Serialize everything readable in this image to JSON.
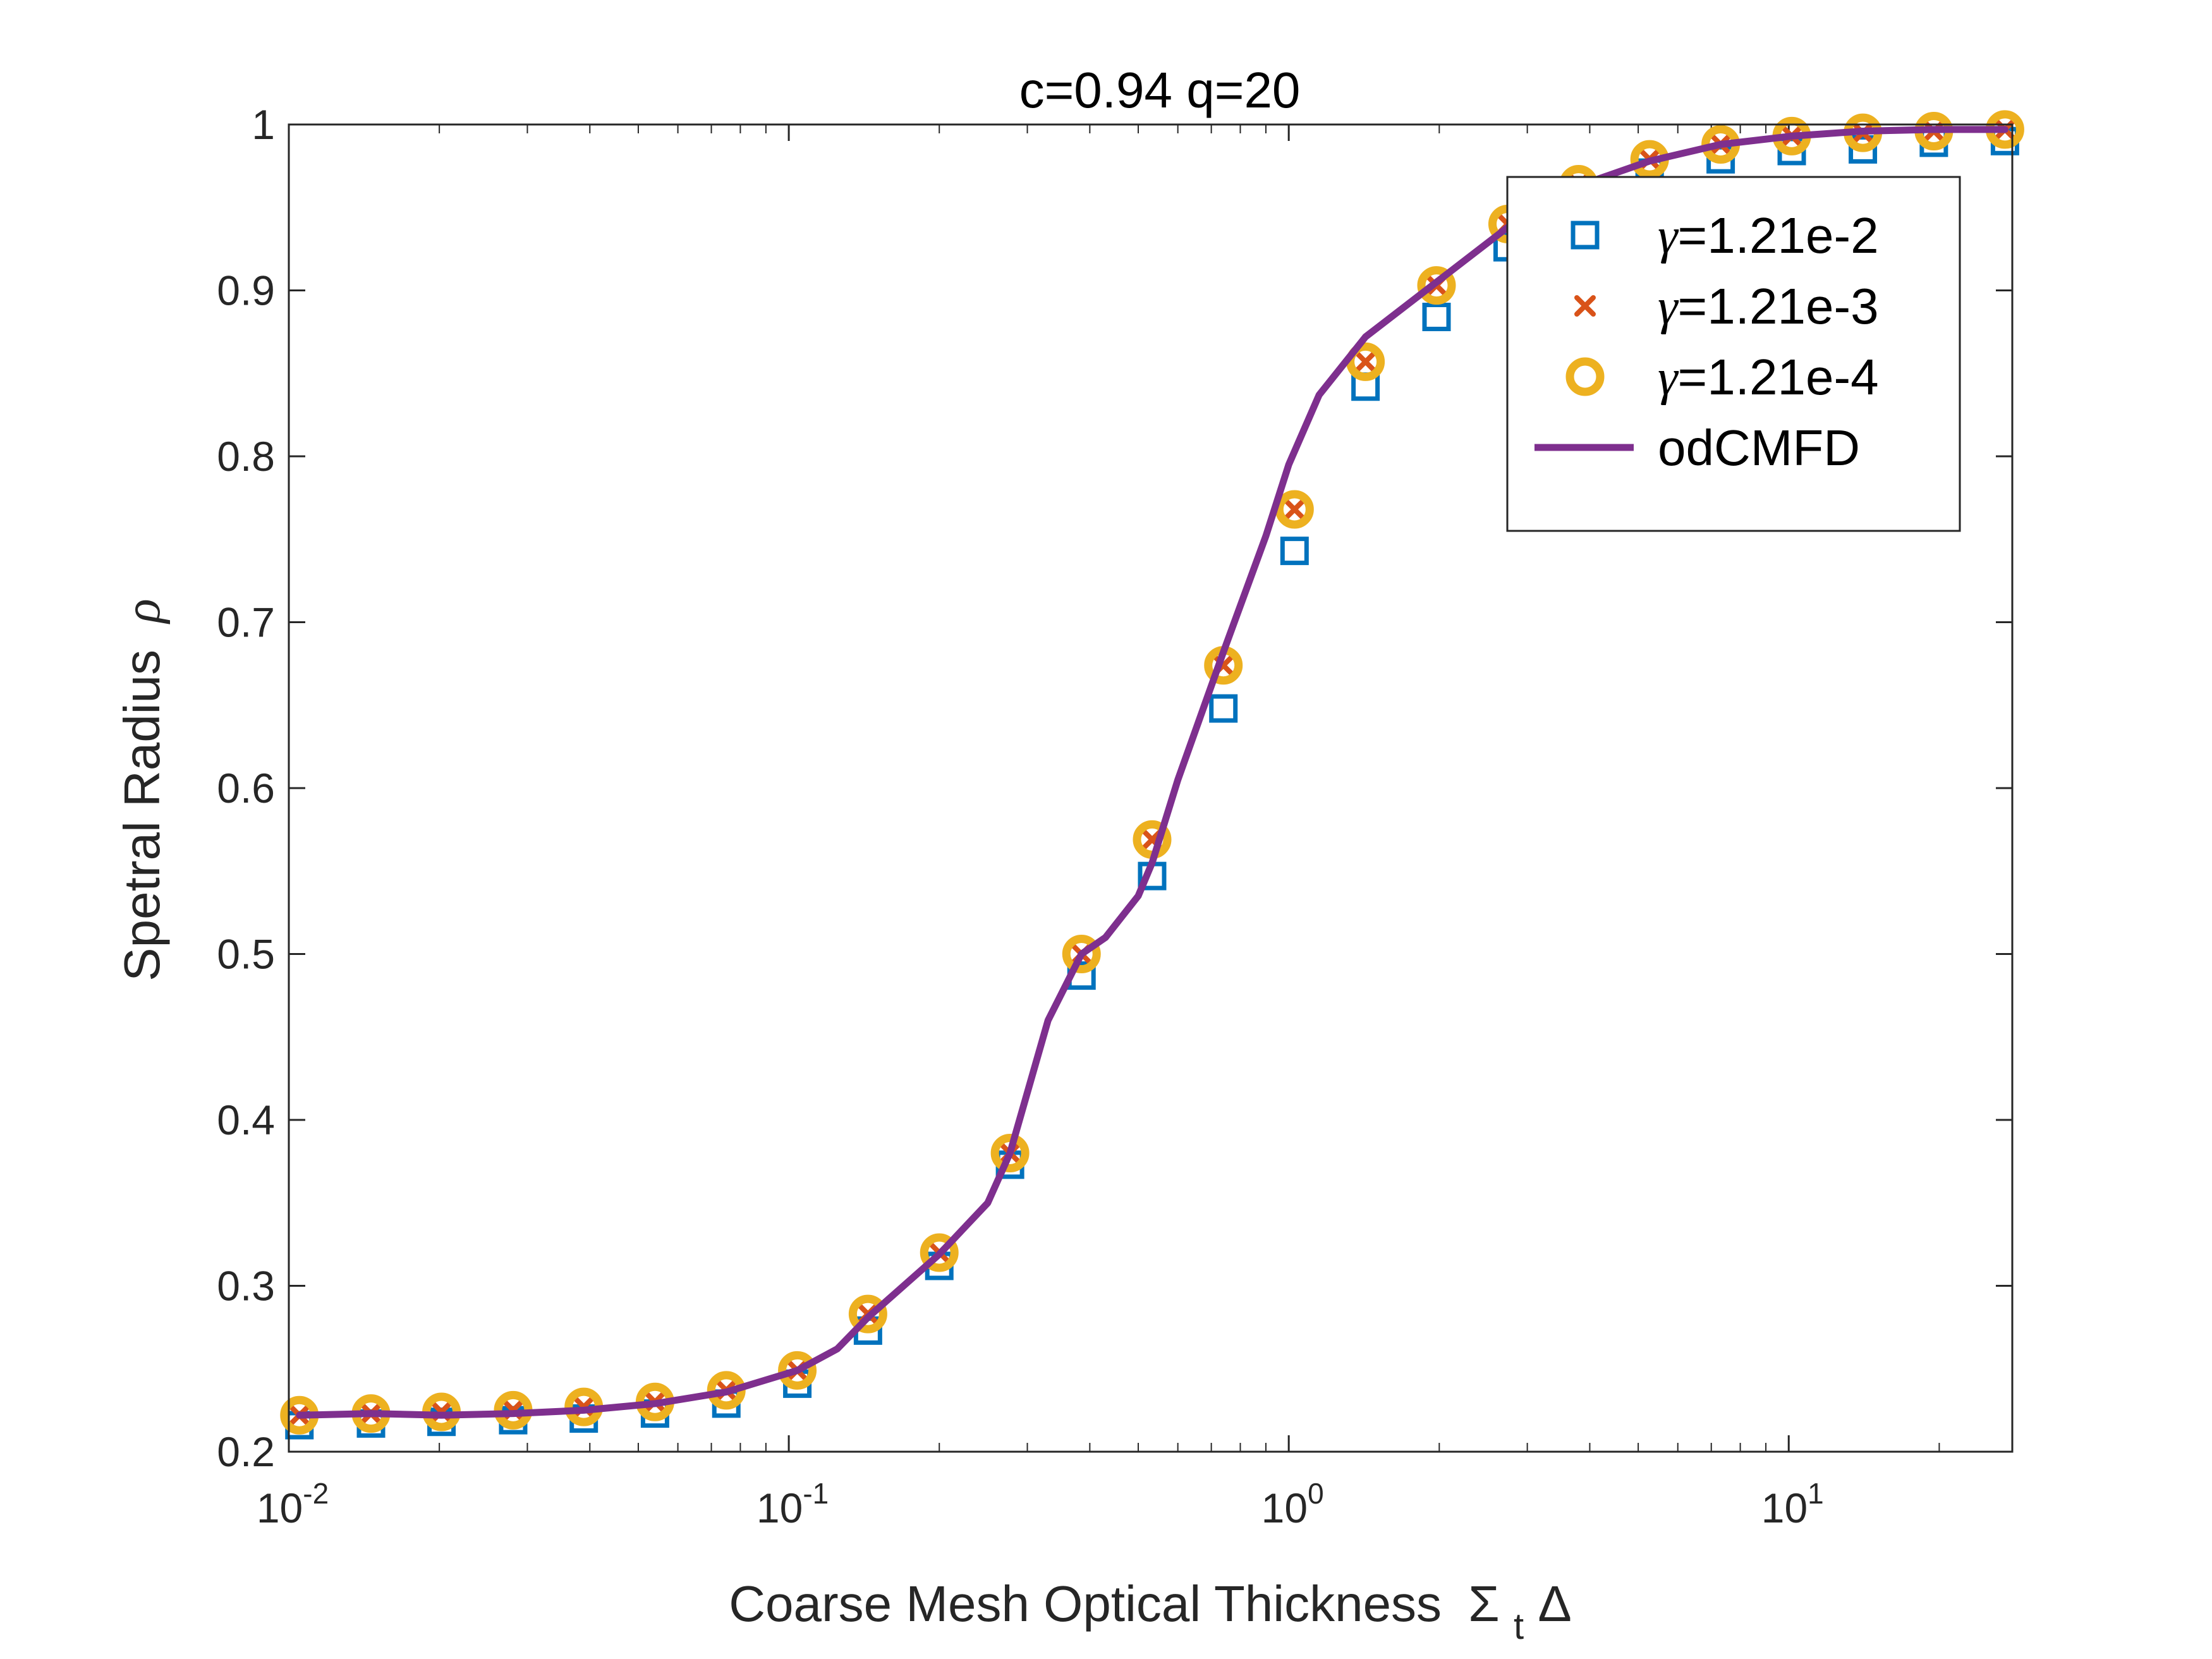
{
  "chart_data": {
    "type": "scatter",
    "title": "c=0.94 q=20",
    "xlabel": "Coarse Mesh Optical Thickness",
    "xlabel_symbol": "Σ",
    "xlabel_subscript": "t",
    "xlabel_tail": "Δ",
    "ylabel": "Spetral Radius",
    "ylabel_symbol": "ρ",
    "x_scale": "log",
    "xlim": [
      0.01,
      28
    ],
    "ylim": [
      0.2,
      1.0
    ],
    "grid": false,
    "legend_position": "top-right",
    "x_ticks": [
      {
        "base": "10",
        "exp": "-2",
        "value": 0.01
      },
      {
        "base": "10",
        "exp": "-1",
        "value": 0.1
      },
      {
        "base": "10",
        "exp": "0",
        "value": 1
      },
      {
        "base": "10",
        "exp": "1",
        "value": 10
      }
    ],
    "y_ticks": [
      "0.2",
      "0.3",
      "0.4",
      "0.5",
      "0.6",
      "0.7",
      "0.8",
      "0.9",
      "1"
    ],
    "x": [
      0.0105,
      0.0146,
      0.0202,
      0.0281,
      0.0389,
      0.054,
      0.075,
      0.104,
      0.144,
      0.2,
      0.277,
      0.385,
      0.533,
      0.74,
      1.027,
      1.424,
      1.975,
      2.74,
      3.8,
      5.27,
      7.31,
      10.14,
      14.07,
      19.51,
      27.07
    ],
    "series": [
      {
        "name": "γ=1.21e-2",
        "marker": "square",
        "color": "#0072BD",
        "values": [
          0.216,
          0.217,
          0.218,
          0.219,
          0.22,
          0.223,
          0.229,
          0.241,
          0.273,
          0.312,
          0.373,
          0.487,
          0.547,
          0.648,
          0.743,
          0.842,
          0.884,
          0.926,
          0.955,
          0.971,
          0.979,
          0.984,
          0.985,
          0.989,
          0.99
        ]
      },
      {
        "name": "γ=1.21e-3",
        "marker": "x",
        "color": "#D95319",
        "values": [
          0.222,
          0.223,
          0.224,
          0.225,
          0.227,
          0.23,
          0.237,
          0.249,
          0.283,
          0.32,
          0.38,
          0.5,
          0.569,
          0.674,
          0.768,
          0.857,
          0.903,
          0.94,
          0.964,
          0.979,
          0.988,
          0.993,
          0.995,
          0.996,
          0.997
        ]
      },
      {
        "name": "γ=1.21e-4",
        "marker": "circle",
        "color": "#EDB120",
        "values": [
          0.222,
          0.223,
          0.224,
          0.225,
          0.227,
          0.23,
          0.237,
          0.249,
          0.283,
          0.32,
          0.38,
          0.5,
          0.569,
          0.674,
          0.768,
          0.857,
          0.903,
          0.94,
          0.964,
          0.979,
          0.988,
          0.993,
          0.995,
          0.996,
          0.997
        ]
      },
      {
        "name": "odCMFD",
        "marker": "line",
        "color": "#7E2F8E",
        "x": [
          0.0105,
          0.0146,
          0.0202,
          0.0281,
          0.0389,
          0.054,
          0.075,
          0.104,
          0.125,
          0.144,
          0.2,
          0.25,
          0.277,
          0.33,
          0.385,
          0.43,
          0.5,
          0.533,
          0.6,
          0.74,
          0.9,
          1.0,
          1.15,
          1.424,
          1.975,
          2.74,
          3.8,
          5.27,
          7.31,
          10.14,
          14.07,
          19.51,
          27.07
        ],
        "values": [
          0.222,
          0.223,
          0.222,
          0.223,
          0.225,
          0.229,
          0.236,
          0.249,
          0.262,
          0.281,
          0.319,
          0.35,
          0.38,
          0.46,
          0.5,
          0.51,
          0.535,
          0.555,
          0.605,
          0.682,
          0.752,
          0.795,
          0.837,
          0.872,
          0.905,
          0.938,
          0.963,
          0.978,
          0.988,
          0.993,
          0.996,
          0.997,
          0.997
        ]
      }
    ]
  }
}
